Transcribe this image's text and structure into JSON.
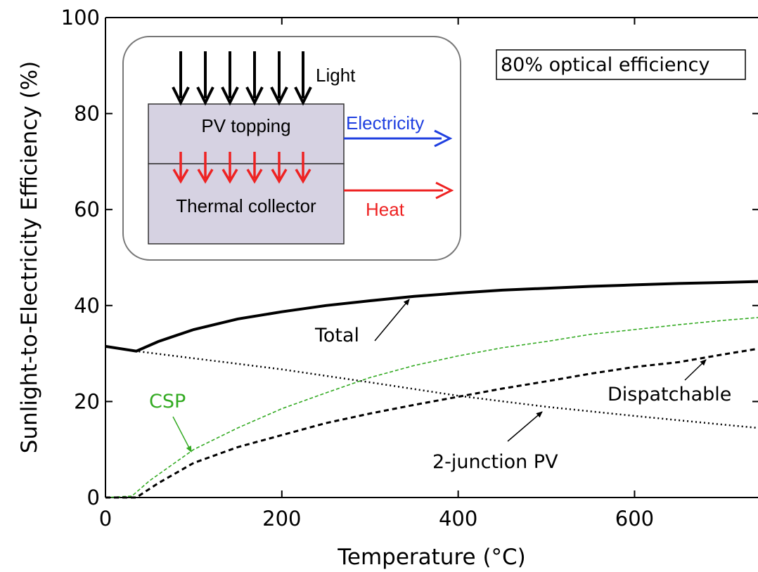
{
  "chart_data": {
    "type": "line",
    "xlabel": "Temperature (°C)",
    "ylabel": "Sunlight-to-Electricity Efficiency (%)",
    "xlim": [
      0,
      740
    ],
    "ylim": [
      0,
      100
    ],
    "x_ticks": [
      0,
      200,
      400,
      600
    ],
    "y_ticks": [
      0,
      20,
      40,
      60,
      80,
      100
    ],
    "grid": false,
    "series": [
      {
        "name": "Total",
        "color": "#000000",
        "style": "solid",
        "x": [
          0,
          35,
          60,
          100,
          150,
          200,
          250,
          300,
          350,
          400,
          450,
          500,
          550,
          600,
          650,
          700,
          740
        ],
        "y": [
          31.5,
          30.5,
          32.5,
          35.0,
          37.2,
          38.7,
          40.0,
          41.0,
          41.9,
          42.6,
          43.2,
          43.6,
          44.0,
          44.3,
          44.6,
          44.8,
          45.0
        ]
      },
      {
        "name": "2-junction PV",
        "color": "#000000",
        "style": "dotted",
        "x": [
          0,
          35,
          100,
          200,
          300,
          400,
          500,
          600,
          700,
          740
        ],
        "y": [
          31.5,
          30.5,
          29.0,
          26.7,
          24.0,
          21.2,
          18.9,
          17.0,
          15.2,
          14.5
        ]
      },
      {
        "name": "CSP",
        "color": "#33aa22",
        "style": "dashed",
        "x": [
          0,
          30,
          50,
          100,
          150,
          200,
          250,
          300,
          350,
          400,
          450,
          500,
          550,
          600,
          650,
          700,
          740
        ],
        "y": [
          0,
          0.3,
          3.5,
          10.0,
          14.5,
          18.5,
          21.8,
          25.0,
          27.5,
          29.5,
          31.2,
          32.5,
          34.0,
          35.0,
          36.0,
          36.9,
          37.5
        ]
      },
      {
        "name": "Dispatchable",
        "color": "#000000",
        "style": "dashed",
        "x": [
          0,
          35,
          60,
          100,
          150,
          200,
          250,
          300,
          350,
          400,
          450,
          500,
          550,
          600,
          650,
          700,
          740
        ],
        "y": [
          0,
          0,
          3.0,
          7.2,
          10.5,
          13.0,
          15.5,
          17.5,
          19.3,
          21.0,
          22.7,
          24.2,
          25.8,
          27.2,
          28.2,
          29.8,
          31.0
        ]
      }
    ],
    "annotations": {
      "total": "Total",
      "pv": "2-junction PV",
      "csp": "CSP",
      "dispatchable": "Dispatchable",
      "optical": "80% optical efficiency"
    },
    "inset": {
      "light": "Light",
      "pv_topping": "PV topping",
      "thermal_collector": "Thermal collector",
      "electricity": "Electricity",
      "heat": "Heat"
    }
  },
  "colors": {
    "inset_fill": "#d6d2e2",
    "electricity": "#1f3fe0",
    "heat": "#ee2222",
    "csp": "#33aa22"
  }
}
